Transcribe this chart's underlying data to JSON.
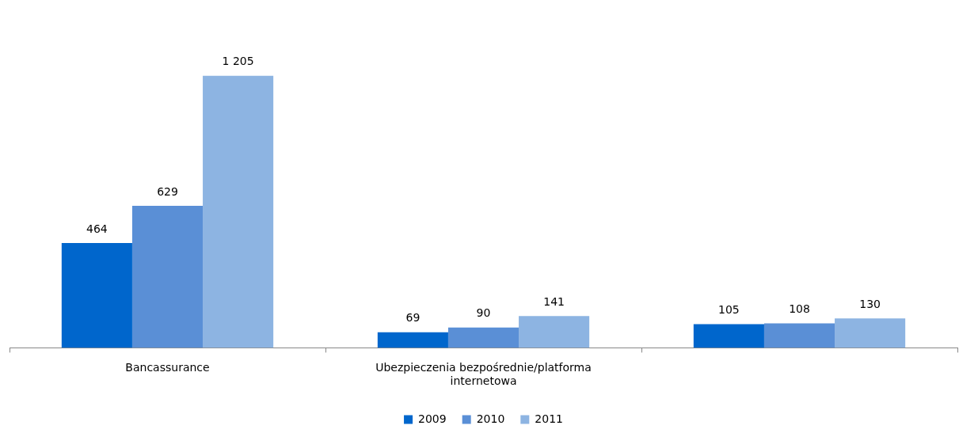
{
  "chart_data": {
    "type": "bar",
    "categories": [
      "Bancassurance",
      "Ubezpieczenia bezpośrednie/platforma internetowa",
      null
    ],
    "series": [
      {
        "name": "2009",
        "color": "#0066cc",
        "values": [
          464,
          69,
          105
        ],
        "value_labels": [
          "464",
          "69",
          "105"
        ]
      },
      {
        "name": "2010",
        "color": "#5a8fd6",
        "values": [
          629,
          90,
          108
        ],
        "value_labels": [
          "629",
          "90",
          "108"
        ]
      },
      {
        "name": "2011",
        "color": "#8db4e2",
        "values": [
          1205,
          141,
          130
        ],
        "value_labels": [
          "1 205",
          "141",
          "130"
        ]
      }
    ],
    "grid": false,
    "legend": "bottom",
    "tick_labels": "x"
  }
}
